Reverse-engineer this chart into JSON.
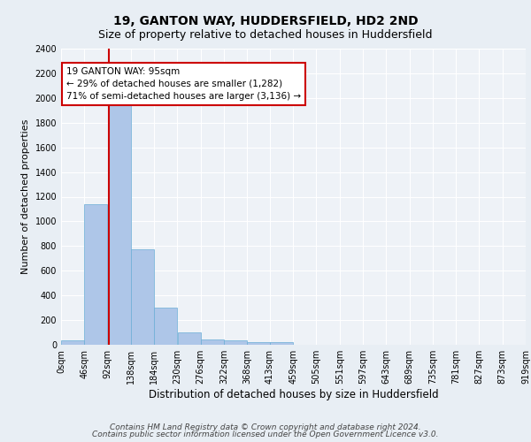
{
  "title1": "19, GANTON WAY, HUDDERSFIELD, HD2 2ND",
  "title2": "Size of property relative to detached houses in Huddersfield",
  "xlabel": "Distribution of detached houses by size in Huddersfield",
  "ylabel": "Number of detached properties",
  "bin_edges": [
    0,
    46,
    92,
    138,
    184,
    230,
    276,
    322,
    368,
    413,
    459,
    505,
    551,
    597,
    643,
    689,
    735,
    781,
    827,
    873,
    919
  ],
  "bar_heights": [
    35,
    1140,
    1960,
    775,
    300,
    100,
    45,
    38,
    25,
    20,
    0,
    0,
    0,
    0,
    0,
    0,
    0,
    0,
    0,
    0
  ],
  "bar_color": "#aec6e8",
  "bar_edge_color": "#6aaed6",
  "property_size": 95,
  "property_line_color": "#cc0000",
  "annotation_line1": "19 GANTON WAY: 95sqm",
  "annotation_line2": "← 29% of detached houses are smaller (1,282)",
  "annotation_line3": "71% of semi-detached houses are larger (3,136) →",
  "annotation_box_color": "#cc0000",
  "ylim": [
    0,
    2400
  ],
  "yticks": [
    0,
    200,
    400,
    600,
    800,
    1000,
    1200,
    1400,
    1600,
    1800,
    2000,
    2200,
    2400
  ],
  "tick_labels": [
    "0sqm",
    "46sqm",
    "92sqm",
    "138sqm",
    "184sqm",
    "230sqm",
    "276sqm",
    "322sqm",
    "368sqm",
    "413sqm",
    "459sqm",
    "505sqm",
    "551sqm",
    "597sqm",
    "643sqm",
    "689sqm",
    "735sqm",
    "781sqm",
    "827sqm",
    "873sqm",
    "919sqm"
  ],
  "footer_line1": "Contains HM Land Registry data © Crown copyright and database right 2024.",
  "footer_line2": "Contains public sector information licensed under the Open Government Licence v3.0.",
  "background_color": "#e8eef4",
  "plot_background": "#eef2f7",
  "grid_color": "#ffffff",
  "title1_fontsize": 10,
  "title2_fontsize": 9,
  "xlabel_fontsize": 8.5,
  "ylabel_fontsize": 8,
  "tick_fontsize": 7,
  "footer_fontsize": 6.5,
  "annotation_fontsize": 7.5
}
